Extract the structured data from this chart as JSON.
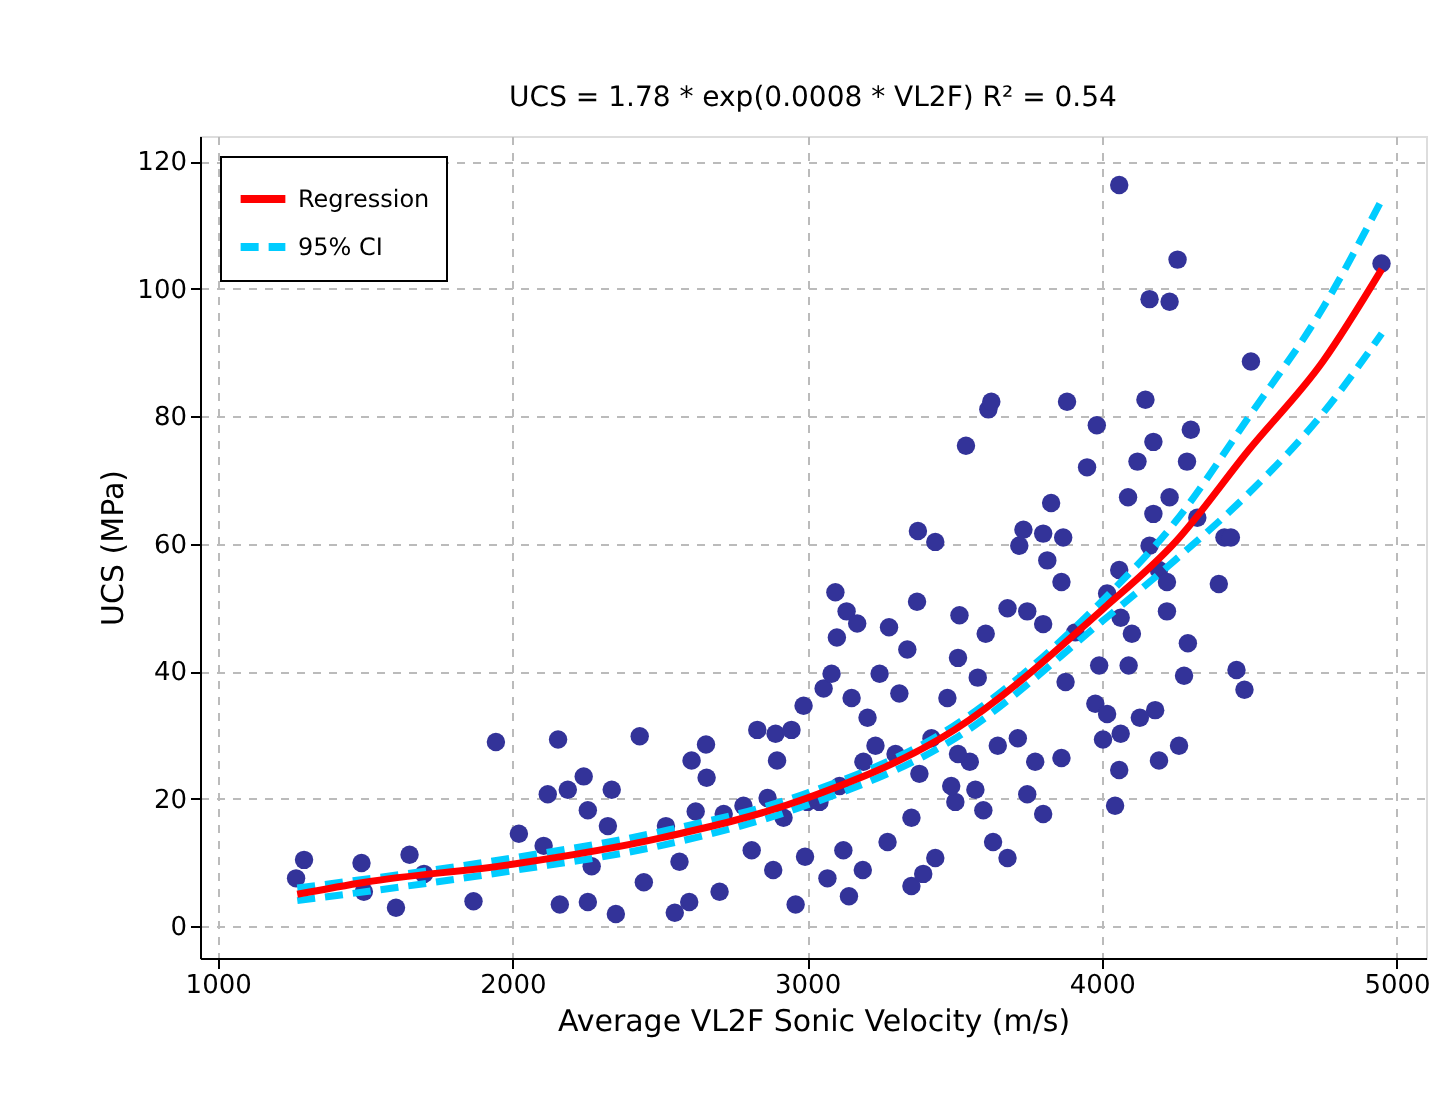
{
  "chart_data": {
    "type": "scatter",
    "title": "UCS = 1.78 * exp(0.0008 * VL2F) R² = 0.54",
    "xlabel": "Average VL2F Sonic Velocity (m/s)",
    "ylabel": "UCS (MPa)",
    "xlim": [
      940,
      5100
    ],
    "ylim": [
      -5,
      124
    ],
    "xticks": [
      1000,
      2000,
      3000,
      4000,
      5000
    ],
    "yticks": [
      0,
      20,
      40,
      60,
      80,
      100,
      120
    ],
    "grid": true,
    "legend": "top left",
    "series": [
      {
        "color": "#333399",
        "marker": "circle",
        "x": [
          1266,
          1293,
          1488,
          1496,
          1605,
          1651,
          1700,
          1868,
          1944,
          2022,
          2106,
          2120,
          2155,
          2161,
          2188,
          2242,
          2256,
          2269,
          2256,
          2337,
          2351,
          2324,
          2432,
          2446,
          2521,
          2551,
          2567,
          2600,
          2608,
          2657,
          2659,
          2622,
          2703,
          2717,
          2784,
          2812,
          2831,
          2893,
          2898,
          2885,
          2961,
          2947,
          2988,
          2866,
          2920,
          2993,
          3042,
          3056,
          3083,
          3096,
          3101,
          3134,
          3170,
          3069,
          3142,
          3123,
          3189,
          3151,
          3205,
          3246,
          3232,
          3273,
          3278,
          3313,
          3340,
          3373,
          3376,
          3435,
          3354,
          3394,
          3435,
          3354,
          3422,
          3476,
          3503,
          3517,
          3539,
          3512,
          3552,
          3579,
          3606,
          3615,
          3625,
          3598,
          3631,
          3680,
          3680,
          3720,
          3734,
          3747,
          3801,
          3801,
          3815,
          3828,
          3863,
          3869,
          3877,
          3882,
          3863,
          3801,
          3747,
          3774,
          3910,
          3950,
          3983,
          3991,
          3978,
          4018,
          4004,
          4045,
          4059,
          4059,
          4059,
          4064,
          4091,
          4089,
          4121,
          4148,
          4162,
          4230,
          4257,
          4175,
          4175,
          4162,
          4194,
          4221,
          4181,
          4129,
          4064,
          4194,
          4262,
          4221,
          4289,
          4302,
          4230,
          4279,
          4292,
          4324,
          4397,
          4416,
          4438,
          4457,
          4484,
          4506,
          4949,
          4102,
          4018,
          3512,
          3647,
          3715,
          3001,
          3110,
          3191,
          3300,
          3381,
          3489,
          3571
        ],
        "values": [
          7.5,
          10.4,
          9.9,
          5.4,
          2.9,
          11.2,
          8.2,
          3.9,
          28.9,
          14.5,
          12.6,
          20.7,
          29.3,
          3.4,
          21.4,
          23.5,
          18.2,
          9.4,
          3.8,
          21.4,
          1.9,
          15.7,
          29.8,
          6.9,
          15.7,
          2.1,
          10.1,
          3.8,
          26.0,
          28.5,
          23.3,
          18.0,
          5.4,
          17.6,
          18.9,
          11.9,
          30.8,
          30.2,
          26.0,
          8.8,
          3.4,
          30.8,
          34.6,
          20.1,
          17.0,
          10.9,
          19.5,
          37.3,
          39.6,
          52.4,
          45.3,
          49.4,
          47.5,
          7.5,
          4.7,
          11.9,
          8.8,
          35.8,
          32.7,
          39.6,
          28.3,
          13.2,
          46.9,
          36.5,
          43.4,
          50.9,
          62.0,
          60.3,
          6.3,
          8.2,
          10.7,
          17.0,
          29.5,
          35.8,
          19.5,
          48.8,
          75.4,
          42.1,
          25.8,
          39.0,
          45.9,
          81.1,
          82.3,
          18.2,
          13.2,
          10.7,
          49.9,
          59.7,
          62.2,
          49.4,
          47.4,
          61.6,
          57.4,
          66.4,
          54.0,
          61.0,
          38.3,
          82.3,
          26.4,
          17.6,
          20.7,
          25.8,
          46.1,
          72.0,
          78.6,
          40.9,
          34.9,
          33.3,
          29.3,
          18.9,
          24.5,
          116.3,
          55.9,
          48.4,
          40.9,
          67.3,
          72.9,
          82.6,
          98.4,
          98.0,
          104.6,
          76.0,
          64.7,
          59.7,
          55.9,
          54.0,
          33.9,
          32.7,
          30.2,
          26.0,
          28.3,
          49.4,
          72.9,
          77.9,
          67.3,
          39.3,
          44.4,
          64.1,
          53.7,
          61.0,
          61.0,
          40.2,
          37.1,
          88.6,
          104.0,
          45.9,
          52.2,
          27.0,
          28.3,
          29.5,
          19.5,
          22.0,
          25.8,
          27.0,
          23.9,
          22.0,
          21.4
        ]
      },
      {
        "type": "line",
        "name": "Regression",
        "color": "#ff0000",
        "line_style": "solid",
        "x": [
          1270,
          1500,
          2000,
          2500,
          3000,
          3500,
          4000,
          4250,
          4500,
          4750,
          4950
        ],
        "values": [
          5.0,
          6.9,
          9.7,
          13.8,
          20.1,
          30.8,
          49.6,
          60.3,
          74.8,
          88.6,
          103.1
        ]
      },
      {
        "type": "line",
        "name": "95% CI",
        "color": "#00ccff",
        "line_style": "dashed",
        "x": [
          1270,
          2000,
          2500,
          3000,
          3500,
          4000,
          4250,
          4500,
          4750,
          4950
        ],
        "values": [
          6.0,
          10.7,
          14.8,
          20.9,
          31.5,
          51.0,
          63.5,
          80.0,
          97.0,
          114.0
        ]
      },
      {
        "type": "line",
        "color": "#00ccff",
        "line_style": "dashed",
        "x": [
          1270,
          2000,
          2500,
          3000,
          3500,
          4000,
          4250,
          4500,
          4750,
          4950
        ],
        "values": [
          4.0,
          8.7,
          12.6,
          19.0,
          29.4,
          47.8,
          57.5,
          68.0,
          80.5,
          93.0
        ]
      }
    ]
  }
}
